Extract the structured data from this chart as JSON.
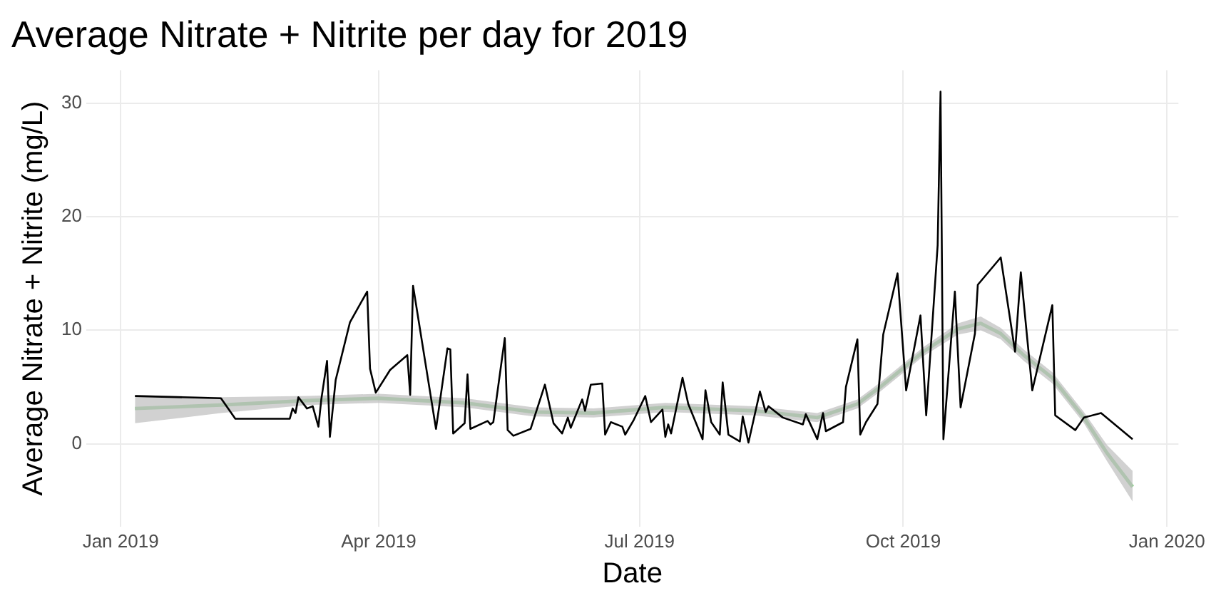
{
  "chart_data": {
    "type": "line",
    "title": "Average Nitrate + Nitrite per day for 2019",
    "xlabel": "Date",
    "ylabel": "Average Nitrate + Nitrite (mg/L)",
    "xlim": [
      "2018-12-20",
      "2020-01-05"
    ],
    "xticks": [
      {
        "value": "2019-01-01",
        "label": "Jan 2019"
      },
      {
        "value": "2019-04-01",
        "label": "Apr 2019"
      },
      {
        "value": "2019-07-01",
        "label": "Jul 2019"
      },
      {
        "value": "2019-10-01",
        "label": "Oct 2019"
      },
      {
        "value": "2020-01-01",
        "label": "Jan 2020"
      }
    ],
    "ylim": [
      -7.3,
      32.9
    ],
    "yticks": [
      0,
      10,
      20,
      30
    ],
    "grid": true,
    "series": [
      {
        "color": "#000000",
        "x": [
          "2019-01-06",
          "2019-02-05",
          "2019-02-10",
          "2019-03-01",
          "2019-03-02",
          "2019-03-03",
          "2019-03-04",
          "2019-03-07",
          "2019-03-09",
          "2019-03-11",
          "2019-03-12",
          "2019-03-14",
          "2019-03-15",
          "2019-03-17",
          "2019-03-22",
          "2019-03-28",
          "2019-03-29",
          "2019-03-31",
          "2019-04-05",
          "2019-04-11",
          "2019-04-12",
          "2019-04-13",
          "2019-04-21",
          "2019-04-25",
          "2019-04-26",
          "2019-04-27",
          "2019-05-01",
          "2019-05-02",
          "2019-05-03",
          "2019-05-09",
          "2019-05-10",
          "2019-05-11",
          "2019-05-15",
          "2019-05-16",
          "2019-05-18",
          "2019-05-24",
          "2019-05-29",
          "2019-06-01",
          "2019-06-04",
          "2019-06-06",
          "2019-06-07",
          "2019-06-11",
          "2019-06-12",
          "2019-06-14",
          "2019-06-18",
          "2019-06-19",
          "2019-06-21",
          "2019-06-25",
          "2019-06-26",
          "2019-06-29",
          "2019-07-03",
          "2019-07-05",
          "2019-07-09",
          "2019-07-10",
          "2019-07-11",
          "2019-07-12",
          "2019-07-16",
          "2019-07-18",
          "2019-07-23",
          "2019-07-24",
          "2019-07-26",
          "2019-07-29",
          "2019-07-30",
          "2019-08-01",
          "2019-08-05",
          "2019-08-06",
          "2019-08-08",
          "2019-08-12",
          "2019-08-14",
          "2019-08-15",
          "2019-08-20",
          "2019-08-27",
          "2019-08-28",
          "2019-09-01",
          "2019-09-03",
          "2019-09-04",
          "2019-09-10",
          "2019-09-11",
          "2019-09-15",
          "2019-09-16",
          "2019-09-18",
          "2019-09-22",
          "2019-09-24",
          "2019-09-29",
          "2019-10-02",
          "2019-10-07",
          "2019-10-09",
          "2019-10-13",
          "2019-10-14",
          "2019-10-15",
          "2019-10-19",
          "2019-10-21",
          "2019-10-26",
          "2019-10-27",
          "2019-11-04",
          "2019-11-09",
          "2019-11-11",
          "2019-11-15",
          "2019-11-22",
          "2019-11-23",
          "2019-11-30",
          "2019-12-03",
          "2019-12-09",
          "2019-12-20"
        ],
        "values": [
          4.2,
          4.0,
          2.2,
          2.2,
          3.1,
          2.7,
          4.1,
          3.1,
          3.3,
          1.5,
          3.9,
          7.3,
          0.6,
          5.6,
          10.7,
          13.4,
          6.6,
          4.5,
          6.5,
          7.8,
          4.3,
          13.9,
          1.3,
          8.4,
          8.3,
          0.9,
          1.8,
          6.1,
          1.3,
          2.0,
          1.7,
          1.9,
          9.3,
          1.2,
          0.7,
          1.3,
          5.2,
          1.8,
          0.9,
          2.3,
          1.4,
          3.9,
          2.9,
          5.2,
          5.3,
          0.8,
          1.9,
          1.5,
          0.8,
          2.1,
          4.2,
          1.9,
          3.0,
          0.6,
          1.7,
          0.9,
          5.8,
          3.5,
          0.4,
          4.7,
          1.9,
          0.8,
          5.4,
          0.8,
          0.2,
          2.4,
          0.1,
          4.6,
          2.8,
          3.3,
          2.3,
          1.7,
          2.6,
          0.4,
          2.7,
          1.1,
          1.9,
          5.0,
          9.2,
          0.8,
          1.9,
          3.5,
          9.6,
          15.0,
          4.7,
          11.3,
          2.5,
          17.5,
          31.0,
          0.4,
          13.4,
          3.2,
          9.7,
          14.0,
          16.4,
          8.1,
          15.1,
          4.7,
          12.2,
          2.5,
          1.2,
          2.3,
          2.7,
          0.4
        ]
      },
      {
        "color": "#90d090",
        "x": [
          "2019-01-06",
          "2019-02-05",
          "2019-03-07",
          "2019-04-01",
          "2019-05-01",
          "2019-05-25",
          "2019-06-15",
          "2019-07-10",
          "2019-08-10",
          "2019-09-01",
          "2019-09-15",
          "2019-09-23",
          "2019-10-08",
          "2019-10-20",
          "2019-10-28",
          "2019-11-04",
          "2019-11-12",
          "2019-11-22",
          "2019-12-03",
          "2019-12-11",
          "2019-12-20"
        ],
        "values": [
          3.1,
          3.4,
          3.8,
          4.0,
          3.6,
          2.8,
          2.7,
          3.2,
          2.9,
          2.3,
          3.5,
          5.0,
          8.1,
          10.1,
          10.6,
          9.7,
          7.8,
          5.8,
          2.3,
          -0.8,
          -3.8
        ],
        "lower": [
          1.8,
          2.7,
          3.4,
          3.6,
          3.2,
          2.4,
          2.3,
          2.8,
          2.5,
          1.9,
          3.1,
          4.6,
          7.7,
          9.6,
          10.0,
          9.2,
          7.3,
          5.3,
          1.8,
          -1.5,
          -5.1
        ],
        "upper": [
          4.3,
          4.1,
          4.2,
          4.4,
          4.0,
          3.2,
          3.1,
          3.6,
          3.3,
          2.7,
          3.9,
          5.4,
          8.5,
          10.6,
          11.2,
          10.2,
          8.3,
          6.3,
          2.8,
          -0.1,
          -2.4
        ]
      }
    ]
  }
}
